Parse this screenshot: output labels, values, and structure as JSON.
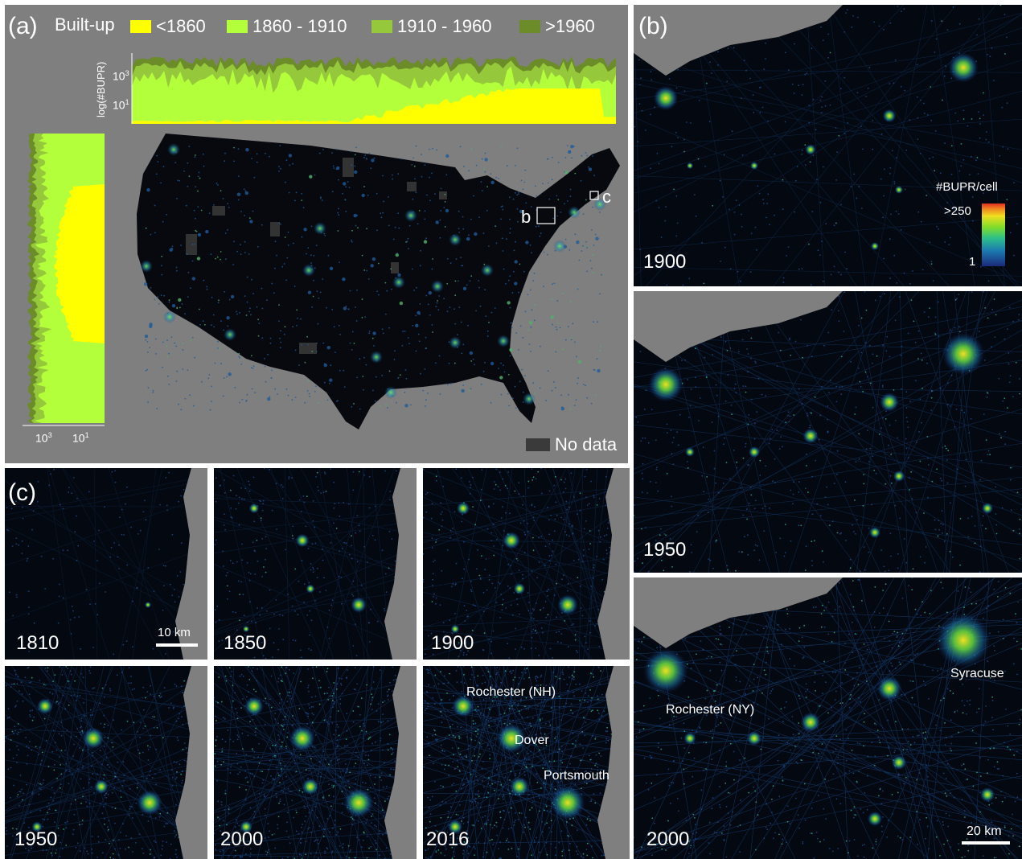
{
  "panel_a": {
    "label": "(a)",
    "legend": {
      "title": "Built-up",
      "items": [
        {
          "label": "<1860",
          "color": "#ffff00"
        },
        {
          "label": "1860 - 1910",
          "color": "#b4ff3c"
        },
        {
          "label": "1910 - 1960",
          "color": "#96c83c"
        },
        {
          "label": ">1960",
          "color": "#6b8c28"
        }
      ]
    },
    "top_axis": {
      "ylabel": "log(#BUPR)",
      "ticks": [
        "10",
        "10"
      ],
      "exps": [
        "3",
        "1"
      ]
    },
    "left_axis": {
      "ticks": [
        "10",
        "10"
      ],
      "exps": [
        "3",
        "1"
      ]
    },
    "box_labels": [
      "b",
      "c"
    ],
    "no_data": {
      "label": "No data",
      "color": "#3a3a3a"
    }
  },
  "panel_b": {
    "label": "(b)",
    "colorbar": {
      "title": "#BUPR/cell",
      "max_label": ">250",
      "min_label": "1"
    },
    "years": [
      "1900",
      "1950",
      "2000"
    ],
    "cities": [
      "Rochester (NY)",
      "Syracuse"
    ],
    "scale": "20 km"
  },
  "panel_c": {
    "label": "(c)",
    "years": [
      "1810",
      "1850",
      "1900",
      "1950",
      "2000",
      "2016"
    ],
    "scale": "10 km",
    "cities": [
      "Rochester (NH)",
      "Dover",
      "Portsmouth"
    ]
  },
  "chart_data": [
    {
      "type": "area",
      "title": "",
      "ylabel": "log(#BUPR)",
      "series": [
        {
          "name": "<1860",
          "color": "#ffff00"
        },
        {
          "name": "1860 - 1910",
          "color": "#b4ff3c"
        },
        {
          "name": "1910 - 1960",
          "color": "#96c83c"
        },
        {
          "name": ">1960",
          "color": "#6b8c28"
        }
      ],
      "yticks": [
        "10^3",
        "10^1"
      ]
    },
    {
      "type": "heatmap",
      "title": "",
      "colorbar_label": "#BUPR/cell",
      "range": [
        1,
        250
      ]
    }
  ]
}
